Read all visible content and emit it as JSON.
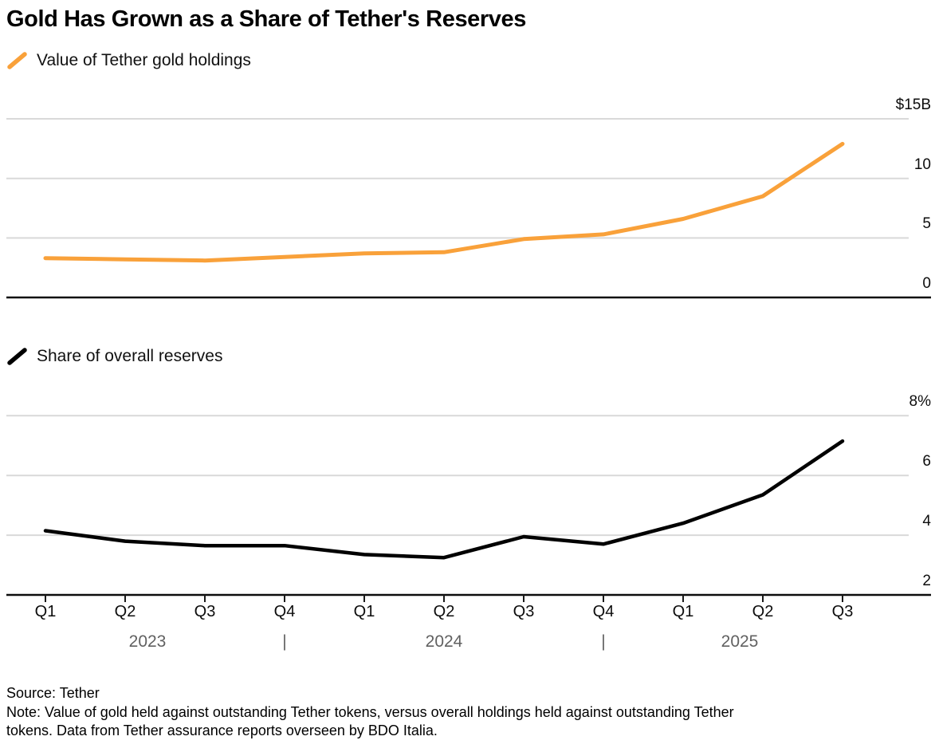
{
  "title": "Gold Has Grown as a Share of Tether's Reserves",
  "legends": [
    {
      "label": "Value of Tether gold holdings"
    },
    {
      "label": "Share of overall reserves"
    }
  ],
  "chart_data": [
    {
      "type": "line",
      "name": "Value of Tether gold holdings",
      "unit": "USD billions",
      "color": "#F9A13A",
      "categories": [
        "Q1 2023",
        "Q2 2023",
        "Q3 2023",
        "Q4 2023",
        "Q1 2024",
        "Q2 2024",
        "Q3 2024",
        "Q4 2024",
        "Q1 2025",
        "Q2 2025",
        "Q3 2025"
      ],
      "values": [
        3.3,
        3.2,
        3.1,
        3.4,
        3.7,
        3.8,
        4.9,
        5.3,
        6.6,
        8.5,
        12.9
      ],
      "ylim": [
        0,
        15
      ],
      "yticks": [
        {
          "value": 15,
          "label": "$15B"
        },
        {
          "value": 10,
          "label": "10"
        },
        {
          "value": 5,
          "label": "5"
        },
        {
          "value": 0,
          "label": "0"
        }
      ],
      "grid": "horizontal",
      "legend_position": "top-left"
    },
    {
      "type": "line",
      "name": "Share of overall reserves",
      "unit": "percent",
      "color": "#000000",
      "categories": [
        "Q1 2023",
        "Q2 2023",
        "Q3 2023",
        "Q4 2023",
        "Q1 2024",
        "Q2 2024",
        "Q3 2024",
        "Q4 2024",
        "Q1 2025",
        "Q2 2025",
        "Q3 2025"
      ],
      "values": [
        4.15,
        3.8,
        3.65,
        3.65,
        3.35,
        3.25,
        3.95,
        3.7,
        4.4,
        5.35,
        7.15
      ],
      "ylim": [
        2,
        8
      ],
      "yticks": [
        {
          "value": 8,
          "label": "8%"
        },
        {
          "value": 6,
          "label": "6"
        },
        {
          "value": 4,
          "label": "4"
        },
        {
          "value": 2,
          "label": "2"
        }
      ],
      "grid": "horizontal",
      "legend_position": "top-left"
    }
  ],
  "x_axis": {
    "tick_labels": [
      "Q1",
      "Q2",
      "Q3",
      "Q4",
      "Q1",
      "Q2",
      "Q3",
      "Q4",
      "Q1",
      "Q2",
      "Q3"
    ],
    "year_row": [
      "2023",
      "|",
      "2024",
      "|",
      "2025"
    ]
  },
  "footer": {
    "source": "Source: Tether",
    "note": "Note: Value of gold held against outstanding Tether tokens, versus overall holdings held against outstanding Tether tokens. Data from Tether assurance reports overseen by BDO Italia."
  }
}
